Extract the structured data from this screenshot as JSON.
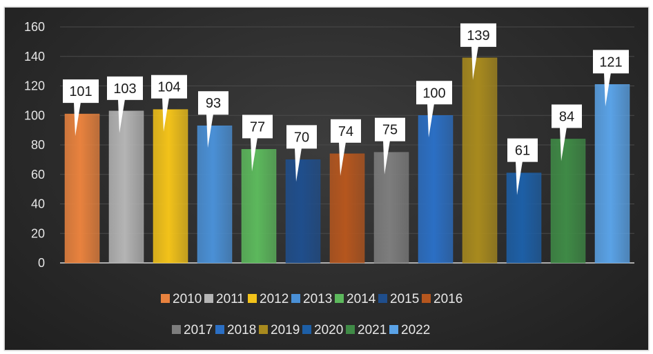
{
  "chart_data": {
    "type": "bar",
    "title": "",
    "xlabel": "",
    "ylabel": "",
    "ylim": [
      0,
      160
    ],
    "yticks": [
      "0",
      "20",
      "40",
      "60",
      "80",
      "100",
      "120",
      "140",
      "160"
    ],
    "grid": true,
    "legend_position": "bottom",
    "series": [
      {
        "name": "2010",
        "value": 101,
        "label": "101",
        "color": "#e8823e"
      },
      {
        "name": "2011",
        "value": 103,
        "label": "103",
        "color": "#b4b4b4"
      },
      {
        "name": "2012",
        "value": 104,
        "label": "104",
        "color": "#f2c21a"
      },
      {
        "name": "2013",
        "value": 93,
        "label": "93",
        "color": "#4a90d6"
      },
      {
        "name": "2014",
        "value": 77,
        "label": "77",
        "color": "#5cb85c"
      },
      {
        "name": "2015",
        "value": 70,
        "label": "70",
        "color": "#1f4e8c"
      },
      {
        "name": "2016",
        "value": 74,
        "label": "74",
        "color": "#b5561e"
      },
      {
        "name": "2017",
        "value": 75,
        "label": "75",
        "color": "#7d7d7d"
      },
      {
        "name": "2018",
        "value": 100,
        "label": "100",
        "color": "#2b6fc4"
      },
      {
        "name": "2019",
        "value": 139,
        "label": "139",
        "color": "#a88a1e"
      },
      {
        "name": "2020",
        "value": 61,
        "label": "61",
        "color": "#1d5fa6"
      },
      {
        "name": "2021",
        "value": 84,
        "label": "84",
        "color": "#3f8a46"
      },
      {
        "name": "2022",
        "value": 121,
        "label": "121",
        "color": "#5aa2e6"
      }
    ]
  }
}
